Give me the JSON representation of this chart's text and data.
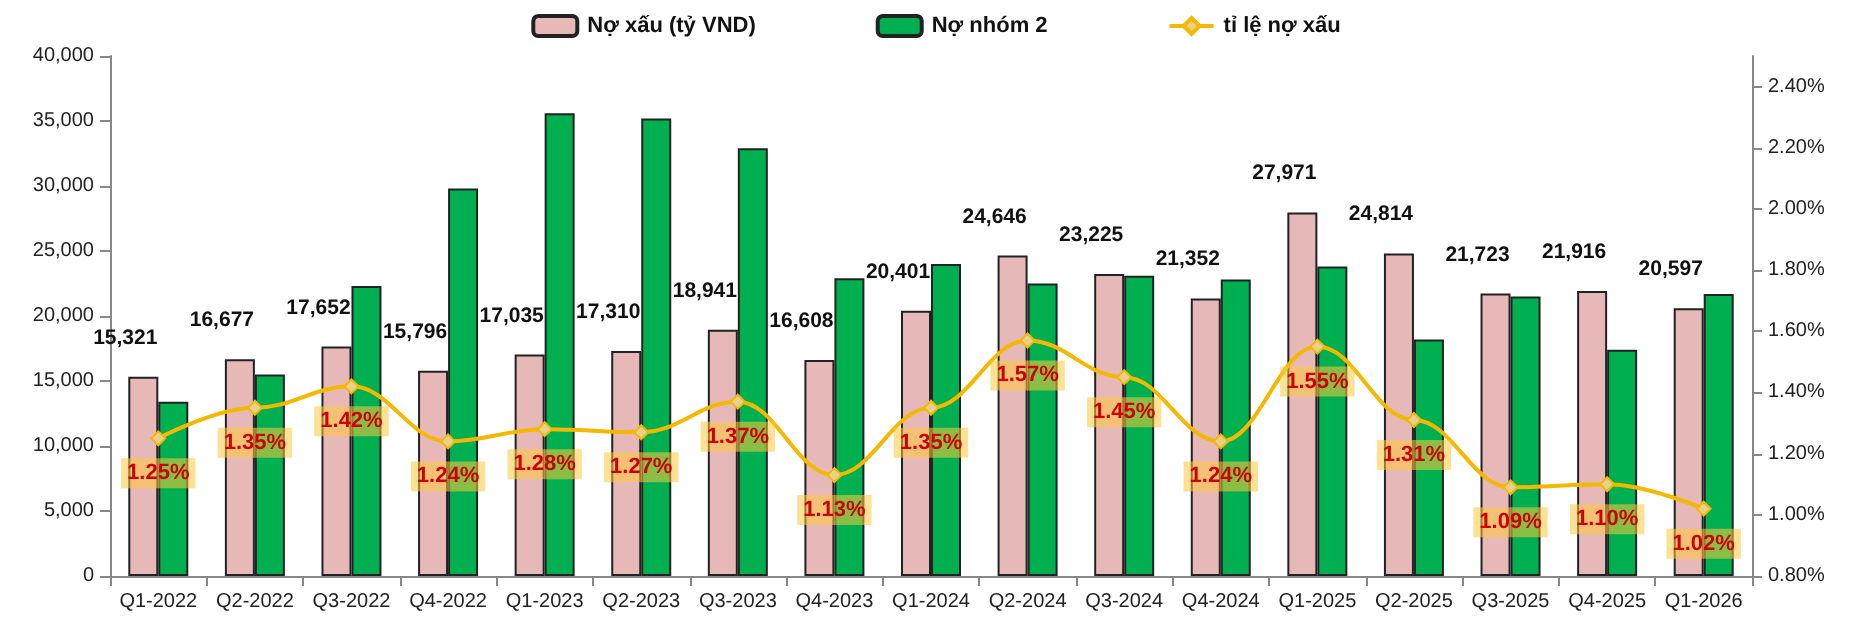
{
  "chart_data": {
    "type": "bar",
    "categories": [
      "Q1-2022",
      "Q2-2022",
      "Q3-2022",
      "Q4-2022",
      "Q1-2023",
      "Q2-2023",
      "Q3-2023",
      "Q4-2023",
      "Q1-2024",
      "Q2-2024",
      "Q3-2024",
      "Q4-2024",
      "Q1-2025",
      "Q2-2025",
      "Q3-2025",
      "Q4-2025",
      "Q1-2026"
    ],
    "series": [
      {
        "name": "Nợ xấu (tỷ VND)",
        "color": "#e6b9b8",
        "values": [
          15321,
          16677,
          17652,
          15796,
          17035,
          17310,
          18941,
          16608,
          20401,
          24646,
          23225,
          21352,
          27971,
          24814,
          21723,
          21916,
          20597
        ],
        "value_labels": [
          "15,321",
          "16,677",
          "17,652",
          "15,796",
          "17,035",
          "17,310",
          "18,941",
          "16,608",
          "20,401",
          "24,646",
          "23,225",
          "21,352",
          "27,971",
          "24,814",
          "21,723",
          "21,916",
          "20,597"
        ]
      },
      {
        "name": "Nợ nhóm 2",
        "color": "#00b050",
        "values": [
          13400,
          15500,
          22300,
          29800,
          35600,
          35200,
          32900,
          22900,
          24000,
          22500,
          23100,
          22800,
          23800,
          18200,
          21500,
          17400,
          21700
        ]
      },
      {
        "name": "tỉ lệ nợ xấu",
        "type": "line",
        "axis": "y2",
        "color": "#f5b800",
        "marker": "diamond",
        "values": [
          1.25,
          1.35,
          1.42,
          1.24,
          1.28,
          1.27,
          1.37,
          1.13,
          1.35,
          1.57,
          1.45,
          1.24,
          1.55,
          1.31,
          1.09,
          1.1,
          1.02
        ],
        "value_labels": [
          "1.25%",
          "1.35%",
          "1.42%",
          "1.24%",
          "1.28%",
          "1.27%",
          "1.37%",
          "1.13%",
          "1.35%",
          "1.57%",
          "1.45%",
          "1.24%",
          "1.55%",
          "1.31%",
          "1.09%",
          "1.10%",
          "1.02%"
        ]
      }
    ],
    "ylim": [
      0,
      40000
    ],
    "yticks": [
      {
        "value": 0,
        "label": "0"
      },
      {
        "value": 5000,
        "label": "5,000"
      },
      {
        "value": 10000,
        "label": "10,000"
      },
      {
        "value": 15000,
        "label": "15,000"
      },
      {
        "value": 20000,
        "label": "20,000"
      },
      {
        "value": 25000,
        "label": "25,000"
      },
      {
        "value": 30000,
        "label": "30,000"
      },
      {
        "value": 35000,
        "label": "35,000"
      },
      {
        "value": 40000,
        "label": "40,000"
      }
    ],
    "y2lim": [
      0.8,
      2.5
    ],
    "y2ticks": [
      {
        "value": 0.8,
        "label": "0.80%"
      },
      {
        "value": 1.0,
        "label": "1.00%"
      },
      {
        "value": 1.2,
        "label": "1.20%"
      },
      {
        "value": 1.4,
        "label": "1.40%"
      },
      {
        "value": 1.6,
        "label": "1.60%"
      },
      {
        "value": 1.8,
        "label": "1.80%"
      },
      {
        "value": 2.0,
        "label": "2.00%"
      },
      {
        "value": 2.2,
        "label": "2.20%"
      },
      {
        "value": 2.4,
        "label": "2.40%"
      }
    ],
    "legend": "top",
    "grid": false
  }
}
